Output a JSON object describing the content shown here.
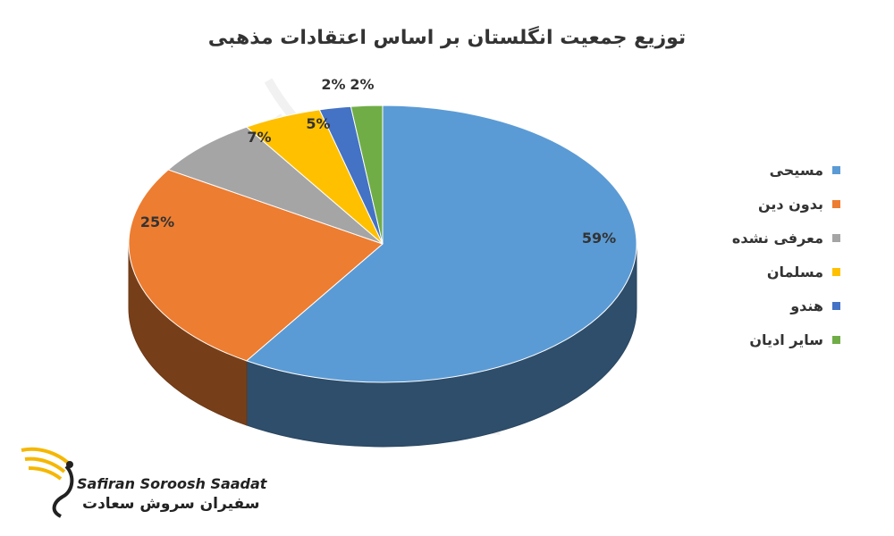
{
  "chart_data": {
    "type": "pie",
    "title": "توزیع جمعیت انگلستان بر اساس اعتقادات مذهبی",
    "categories": [
      "مسیحی",
      "بدون دین",
      "معرفی نشده",
      "مسلمان",
      "هندو",
      "سایر ادیان"
    ],
    "values": [
      59,
      25,
      7,
      5,
      2,
      2
    ],
    "data_labels": [
      "59%",
      "25%",
      "7%",
      "5%",
      "2%",
      "2%"
    ],
    "colors": [
      "#5B9BD5",
      "#ED7D31",
      "#A5A5A5",
      "#FFC000",
      "#4472C4",
      "#70AD47"
    ],
    "legend_position": "right"
  },
  "branding": {
    "name_latin": "Safiran Soroosh Saadat",
    "name_fa": "سفیران سروش سعادت"
  }
}
